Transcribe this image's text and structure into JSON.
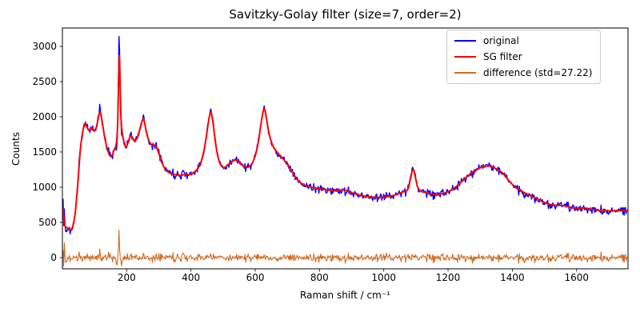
{
  "chart_data": {
    "type": "line",
    "title": "Savitzky-Golay filter (size=7, order=2)",
    "xlabel": "Raman shift / cm⁻¹",
    "ylabel": "Counts",
    "xlim": [
      0,
      1760
    ],
    "ylim": [
      -159,
      3261
    ],
    "xticks": [
      200,
      400,
      600,
      800,
      1000,
      1200,
      1400,
      1600
    ],
    "yticks": [
      0,
      500,
      1000,
      1500,
      2000,
      2500,
      3000
    ],
    "grid": false,
    "legend_position": "upper right",
    "noise_std": 27.22,
    "sample_step": 2,
    "series": [
      {
        "name": "original",
        "color": "#0000ff",
        "width": 1.4,
        "role": "original"
      },
      {
        "name": "SG filter",
        "color": "#ff0000",
        "width": 2.0,
        "role": "sg"
      },
      {
        "name": "difference (std=27.22)",
        "color": "#d2691e",
        "width": 1.1,
        "role": "difference"
      }
    ],
    "sg_anchor_points": [
      [
        2,
        730
      ],
      [
        4,
        580
      ],
      [
        6,
        480
      ],
      [
        8,
        448
      ],
      [
        12,
        432
      ],
      [
        16,
        418
      ],
      [
        20,
        405
      ],
      [
        25,
        393
      ],
      [
        30,
        415
      ],
      [
        35,
        490
      ],
      [
        40,
        640
      ],
      [
        45,
        880
      ],
      [
        50,
        1180
      ],
      [
        55,
        1500
      ],
      [
        60,
        1700
      ],
      [
        64,
        1810
      ],
      [
        68,
        1885
      ],
      [
        71,
        1905
      ],
      [
        74,
        1885
      ],
      [
        78,
        1840
      ],
      [
        82,
        1808
      ],
      [
        86,
        1820
      ],
      [
        90,
        1840
      ],
      [
        94,
        1835
      ],
      [
        98,
        1808
      ],
      [
        102,
        1806
      ],
      [
        106,
        1855
      ],
      [
        110,
        1945
      ],
      [
        114,
        2035
      ],
      [
        117,
        2068
      ],
      [
        120,
        2040
      ],
      [
        123,
        1955
      ],
      [
        127,
        1840
      ],
      [
        131,
        1720
      ],
      [
        136,
        1610
      ],
      [
        141,
        1520
      ],
      [
        146,
        1458
      ],
      [
        151,
        1432
      ],
      [
        156,
        1465
      ],
      [
        161,
        1535
      ],
      [
        165,
        1565
      ],
      [
        168,
        1620
      ],
      [
        170,
        1720
      ],
      [
        172,
        1900
      ],
      [
        174,
        2300
      ],
      [
        176,
        2750
      ],
      [
        177,
        2868
      ],
      [
        178,
        2800
      ],
      [
        180,
        2400
      ],
      [
        182,
        2020
      ],
      [
        184,
        1860
      ],
      [
        187,
        1745
      ],
      [
        190,
        1675
      ],
      [
        193,
        1618
      ],
      [
        196,
        1578
      ],
      [
        199,
        1572
      ],
      [
        202,
        1605
      ],
      [
        206,
        1665
      ],
      [
        210,
        1718
      ],
      [
        213,
        1730
      ],
      [
        216,
        1712
      ],
      [
        220,
        1678
      ],
      [
        224,
        1655
      ],
      [
        228,
        1662
      ],
      [
        232,
        1695
      ],
      [
        236,
        1745
      ],
      [
        240,
        1805
      ],
      [
        244,
        1875
      ],
      [
        248,
        1942
      ],
      [
        251,
        1972
      ],
      [
        254,
        1955
      ],
      [
        257,
        1890
      ],
      [
        261,
        1795
      ],
      [
        265,
        1715
      ],
      [
        269,
        1660
      ],
      [
        274,
        1622
      ],
      [
        279,
        1600
      ],
      [
        284,
        1592
      ],
      [
        289,
        1598
      ],
      [
        293,
        1575
      ],
      [
        297,
        1528
      ],
      [
        302,
        1455
      ],
      [
        307,
        1385
      ],
      [
        313,
        1315
      ],
      [
        319,
        1262
      ],
      [
        326,
        1225
      ],
      [
        333,
        1203
      ],
      [
        341,
        1190
      ],
      [
        350,
        1180
      ],
      [
        359,
        1172
      ],
      [
        368,
        1170
      ],
      [
        377,
        1176
      ],
      [
        386,
        1180
      ],
      [
        395,
        1178
      ],
      [
        403,
        1192
      ],
      [
        410,
        1215
      ],
      [
        417,
        1242
      ],
      [
        424,
        1282
      ],
      [
        430,
        1335
      ],
      [
        436,
        1425
      ],
      [
        442,
        1555
      ],
      [
        448,
        1725
      ],
      [
        453,
        1890
      ],
      [
        458,
        2020
      ],
      [
        461,
        2062
      ],
      [
        464,
        2048
      ],
      [
        468,
        1945
      ],
      [
        472,
        1790
      ],
      [
        477,
        1615
      ],
      [
        482,
        1475
      ],
      [
        487,
        1380
      ],
      [
        492,
        1320
      ],
      [
        497,
        1288
      ],
      [
        502,
        1278
      ],
      [
        507,
        1285
      ],
      [
        513,
        1308
      ],
      [
        519,
        1335
      ],
      [
        526,
        1362
      ],
      [
        533,
        1382
      ],
      [
        539,
        1390
      ],
      [
        545,
        1378
      ],
      [
        551,
        1352
      ],
      [
        557,
        1322
      ],
      [
        563,
        1300
      ],
      [
        569,
        1288
      ],
      [
        575,
        1284
      ],
      [
        581,
        1290
      ],
      [
        587,
        1315
      ],
      [
        593,
        1360
      ],
      [
        599,
        1428
      ],
      [
        605,
        1530
      ],
      [
        611,
        1675
      ],
      [
        616,
        1835
      ],
      [
        621,
        1990
      ],
      [
        625,
        2085
      ],
      [
        628,
        2115
      ],
      [
        631,
        2080
      ],
      [
        635,
        1975
      ],
      [
        639,
        1860
      ],
      [
        643,
        1765
      ],
      [
        648,
        1675
      ],
      [
        653,
        1608
      ],
      [
        658,
        1560
      ],
      [
        664,
        1520
      ],
      [
        670,
        1488
      ],
      [
        676,
        1458
      ],
      [
        682,
        1428
      ],
      [
        688,
        1395
      ],
      [
        694,
        1360
      ],
      [
        700,
        1322
      ],
      [
        706,
        1282
      ],
      [
        712,
        1242
      ],
      [
        718,
        1198
      ],
      [
        724,
        1152
      ],
      [
        730,
        1110
      ],
      [
        737,
        1078
      ],
      [
        744,
        1052
      ],
      [
        752,
        1032
      ],
      [
        760,
        1018
      ],
      [
        768,
        1007
      ],
      [
        776,
        998
      ],
      [
        785,
        990
      ],
      [
        794,
        983
      ],
      [
        803,
        976
      ],
      [
        812,
        970
      ],
      [
        822,
        963
      ],
      [
        832,
        955
      ],
      [
        842,
        950
      ],
      [
        852,
        948
      ],
      [
        860,
        952
      ],
      [
        868,
        962
      ],
      [
        874,
        966
      ],
      [
        880,
        958
      ],
      [
        888,
        945
      ],
      [
        896,
        930
      ],
      [
        904,
        916
      ],
      [
        912,
        904
      ],
      [
        921,
        892
      ],
      [
        930,
        882
      ],
      [
        939,
        874
      ],
      [
        948,
        868
      ],
      [
        957,
        862
      ],
      [
        966,
        858
      ],
      [
        975,
        855
      ],
      [
        984,
        854
      ],
      [
        993,
        855
      ],
      [
        1002,
        858
      ],
      [
        1011,
        864
      ],
      [
        1020,
        872
      ],
      [
        1029,
        882
      ],
      [
        1038,
        894
      ],
      [
        1047,
        910
      ],
      [
        1056,
        925
      ],
      [
        1063,
        936
      ],
      [
        1069,
        942
      ],
      [
        1074,
        958
      ],
      [
        1079,
        1030
      ],
      [
        1083,
        1130
      ],
      [
        1087,
        1210
      ],
      [
        1090,
        1248
      ],
      [
        1093,
        1242
      ],
      [
        1096,
        1195
      ],
      [
        1100,
        1105
      ],
      [
        1104,
        1022
      ],
      [
        1108,
        975
      ],
      [
        1113,
        950
      ],
      [
        1119,
        938
      ],
      [
        1126,
        928
      ],
      [
        1134,
        918
      ],
      [
        1143,
        908
      ],
      [
        1152,
        902
      ],
      [
        1161,
        899
      ],
      [
        1170,
        900
      ],
      [
        1179,
        906
      ],
      [
        1188,
        916
      ],
      [
        1197,
        930
      ],
      [
        1206,
        950
      ],
      [
        1215,
        975
      ],
      [
        1224,
        1005
      ],
      [
        1233,
        1042
      ],
      [
        1242,
        1080
      ],
      [
        1251,
        1118
      ],
      [
        1260,
        1155
      ],
      [
        1269,
        1190
      ],
      [
        1278,
        1222
      ],
      [
        1287,
        1248
      ],
      [
        1296,
        1270
      ],
      [
        1305,
        1288
      ],
      [
        1313,
        1300
      ],
      [
        1320,
        1307
      ],
      [
        1327,
        1305
      ],
      [
        1334,
        1296
      ],
      [
        1341,
        1282
      ],
      [
        1348,
        1266
      ],
      [
        1355,
        1250
      ],
      [
        1362,
        1232
      ],
      [
        1369,
        1205
      ],
      [
        1376,
        1168
      ],
      [
        1383,
        1128
      ],
      [
        1390,
        1088
      ],
      [
        1397,
        1052
      ],
      [
        1405,
        1018
      ],
      [
        1413,
        988
      ],
      [
        1421,
        963
      ],
      [
        1430,
        940
      ],
      [
        1439,
        918
      ],
      [
        1448,
        898
      ],
      [
        1458,
        878
      ],
      [
        1468,
        856
      ],
      [
        1479,
        832
      ],
      [
        1490,
        806
      ],
      [
        1501,
        782
      ],
      [
        1512,
        762
      ],
      [
        1523,
        750
      ],
      [
        1534,
        744
      ],
      [
        1545,
        742
      ],
      [
        1556,
        740
      ],
      [
        1567,
        732
      ],
      [
        1578,
        718
      ],
      [
        1589,
        706
      ],
      [
        1600,
        700
      ],
      [
        1611,
        702
      ],
      [
        1622,
        706
      ],
      [
        1633,
        700
      ],
      [
        1644,
        688
      ],
      [
        1655,
        678
      ],
      [
        1666,
        672
      ],
      [
        1678,
        668
      ],
      [
        1690,
        666
      ],
      [
        1703,
        665
      ],
      [
        1716,
        665
      ],
      [
        1729,
        666
      ],
      [
        1742,
        668
      ],
      [
        1755,
        671
      ],
      [
        1760,
        672
      ]
    ],
    "residual_spikes": [
      {
        "x": 2,
        "amp": 90,
        "w": 1.0
      },
      {
        "x": 4,
        "amp": -150,
        "w": 1.3
      },
      {
        "x": 6,
        "amp": 210,
        "w": 1.4
      },
      {
        "x": 12,
        "amp": -70,
        "w": 2.0
      },
      {
        "x": 116,
        "amp": 55,
        "w": 2.5
      },
      {
        "x": 168,
        "amp": -145,
        "w": 2.2
      },
      {
        "x": 176,
        "amp": 430,
        "w": 1.8
      },
      {
        "x": 184,
        "amp": -120,
        "w": 2.4
      },
      {
        "x": 252,
        "amp": 55,
        "w": 2.5
      },
      {
        "x": 462,
        "amp": 50,
        "w": 2.0
      },
      {
        "x": 628,
        "amp": 30,
        "w": 2.0
      },
      {
        "x": 1090,
        "amp": 38,
        "w": 2.0
      },
      {
        "x": 1322,
        "amp": 22,
        "w": 3.0
      }
    ]
  }
}
